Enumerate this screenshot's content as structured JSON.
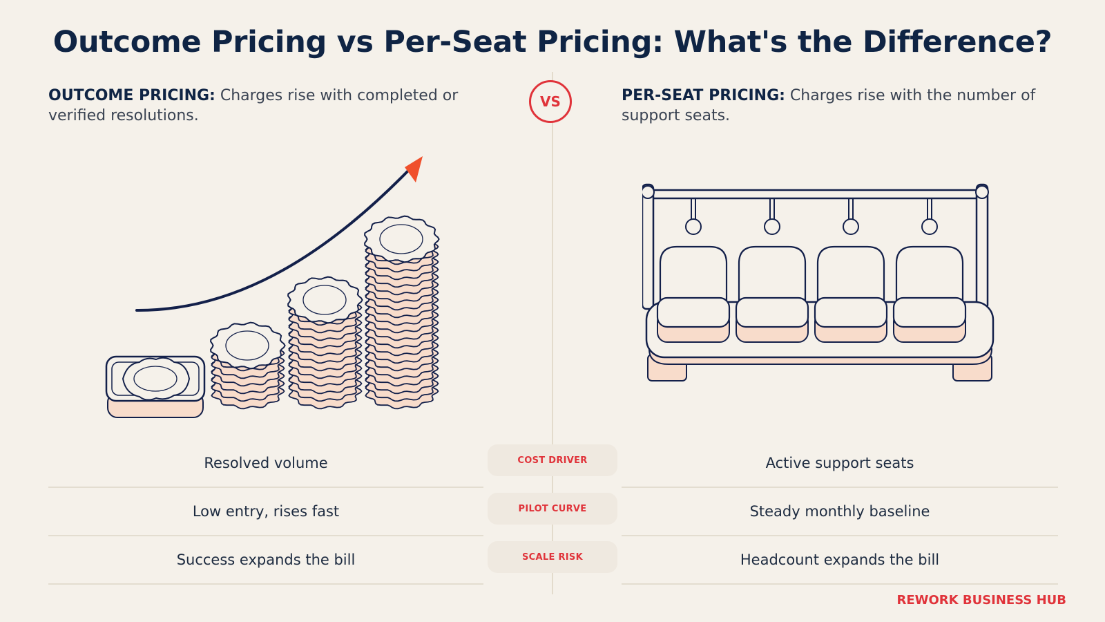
{
  "title": "Outcome Pricing vs Per-Seat Pricing: What's the Difference?",
  "vs_label": "VS",
  "left": {
    "term": "OUTCOME PRICING:",
    "description": " Charges rise with completed or verified resolutions.",
    "illustration_icon": "coin-stacks-rising-arrow-icon"
  },
  "right": {
    "term": "PER-SEAT PRICING:",
    "description": " Charges rise with the number of support seats.",
    "illustration_icon": "row-of-seats-icon"
  },
  "rows": [
    {
      "label": "COST DRIVER",
      "left": "Resolved volume",
      "right": "Active support seats"
    },
    {
      "label": "PILOT CURVE",
      "left": "Low entry, rises fast",
      "right": "Steady monthly baseline"
    },
    {
      "label": "SCALE RISK",
      "left": "Success expands the bill",
      "right": "Headcount expands the bill"
    }
  ],
  "brand": "REWORK BUSINESS HUB",
  "colors": {
    "background": "#f5f1ea",
    "navy": "#0f2444",
    "accent_red": "#e0333a",
    "arrow_orange": "#f0502c",
    "coin_fill": "#f8dccb"
  }
}
